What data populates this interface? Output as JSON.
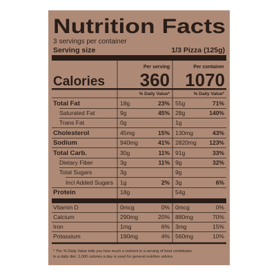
{
  "title": "Nutrition Facts",
  "servings": "3 servings per container",
  "serving_size": {
    "label": "Serving size",
    "value": "1/3 Pizza (125g)"
  },
  "calories": {
    "label": "Calories",
    "serving_header": "Per serving",
    "serving_value": 360,
    "container_header": "Per container",
    "container_value": 1070
  },
  "dv_header": [
    "% Daily Value*",
    "% Daily Value*"
  ],
  "rows": [
    {
      "name": "Total Fat",
      "amount": "18g",
      "dv": "23%",
      "amount2": "55g",
      "dv2": "71%"
    },
    {
      "name": "Saturated Fat",
      "amount": "9g",
      "dv": "45%",
      "amount2": "28g",
      "dv2": "140%"
    },
    {
      "name": "Trans Fat",
      "amount": "0g",
      "amount2": "1g"
    },
    {
      "name": "Cholesterol",
      "amount": "45mg",
      "dv": "15%",
      "amount2": "130mg",
      "dv2": "43%"
    },
    {
      "name": "Sodium",
      "amount": "940mg",
      "dv": "41%",
      "amount2": "2820mg",
      "dv2": "123%"
    },
    {
      "name": "Total Carb.",
      "amount": "30g",
      "dv": "11%",
      "amount2": "91g",
      "dv2": "33%"
    },
    {
      "name": "Dietary Fiber",
      "amount": "3g",
      "dv": "11%",
      "amount2": "9g",
      "dv2": "32%"
    },
    {
      "name": "Total Sugars",
      "amount": "3g",
      "amount2": "9g"
    },
    {
      "name": "Incl Added Sugars",
      "amount": "1g",
      "dv": "2%",
      "amount2": "3g",
      "dv2": "6%"
    },
    {
      "name": "Protein",
      "amount": "18g",
      "amount2": "54g"
    },
    {
      "name": "Vitamin D",
      "amount": "0mcg",
      "dv": "0%",
      "amount2": "0mcg",
      "dv2": "0%"
    },
    {
      "name": "Calcium",
      "amount": "290mg",
      "dv": "20%",
      "amount2": "880mg",
      "dv2": "70%"
    },
    {
      "name": "Iron",
      "amount": "1mg",
      "dv": "6%",
      "amount2": "3mg",
      "dv2": "15%"
    },
    {
      "name": "Potassium",
      "amount": "190mg",
      "dv": "4%",
      "amount2": "560mg",
      "dv2": "10%"
    }
  ],
  "footnote": [
    "* The % Daily Value tells you how much a nutrient in a serving of food contributes",
    "to a daily diet. 2,000 calories a day is used for general nutrition advice."
  ]
}
